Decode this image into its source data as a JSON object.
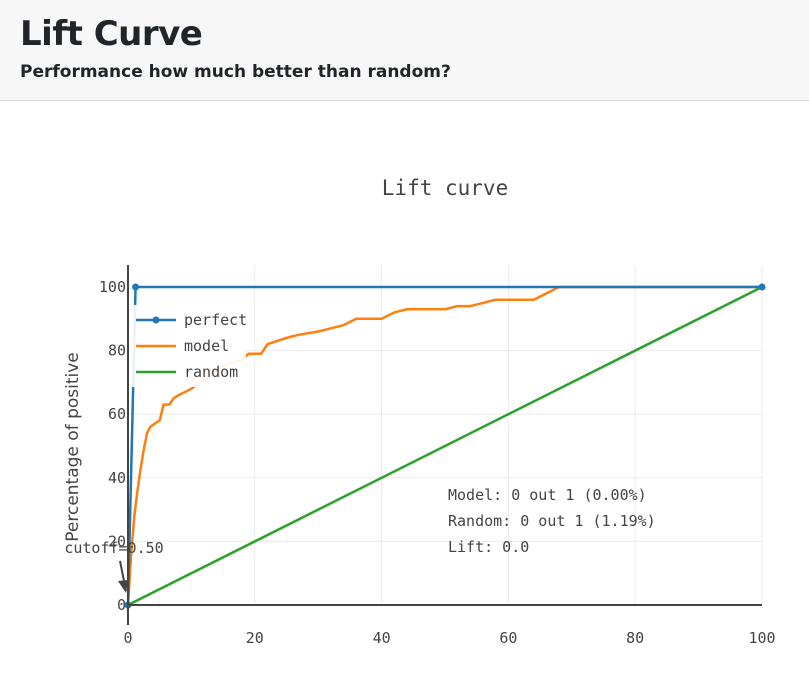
{
  "header": {
    "title": "Lift Curve",
    "subtitle": "Performance how much better than random?"
  },
  "chart_data": {
    "type": "line",
    "title": "Lift curve",
    "xlabel": "",
    "ylabel": "Percentage of positive",
    "xlim": [
      0,
      100
    ],
    "ylim": [
      0,
      100
    ],
    "x_ticks": [
      0,
      20,
      40,
      60,
      80,
      100
    ],
    "y_ticks": [
      0,
      20,
      40,
      60,
      80,
      100
    ],
    "x_tick_labels": [
      "0",
      "20",
      "40",
      "60",
      "80",
      "100"
    ],
    "y_tick_labels": [
      "0",
      "20",
      "40",
      "60",
      "80",
      "100"
    ],
    "grid": true,
    "legend_position": "top-left",
    "series": [
      {
        "name": "perfect",
        "color": "#1f77b4",
        "markers": true,
        "points": [
          [
            0,
            0
          ],
          [
            1.19,
            100
          ],
          [
            100,
            100
          ]
        ]
      },
      {
        "name": "model",
        "color": "#ff7f0e",
        "markers": false,
        "points": [
          [
            0,
            0
          ],
          [
            0.5,
            16
          ],
          [
            1,
            28
          ],
          [
            1.5,
            36
          ],
          [
            2,
            43
          ],
          [
            2.5,
            49
          ],
          [
            3,
            54
          ],
          [
            3.5,
            56
          ],
          [
            4.2,
            57
          ],
          [
            5,
            58
          ],
          [
            5.6,
            63
          ],
          [
            6.5,
            63
          ],
          [
            7.2,
            65
          ],
          [
            8,
            66
          ],
          [
            9,
            67
          ],
          [
            10,
            68
          ],
          [
            12,
            71
          ],
          [
            14,
            74
          ],
          [
            16,
            76
          ],
          [
            18,
            77
          ],
          [
            19,
            79
          ],
          [
            21,
            79
          ],
          [
            22,
            82
          ],
          [
            23.5,
            83
          ],
          [
            25,
            84
          ],
          [
            27,
            85
          ],
          [
            30,
            86
          ],
          [
            32,
            87
          ],
          [
            34,
            88
          ],
          [
            36,
            90
          ],
          [
            38,
            90
          ],
          [
            40,
            90
          ],
          [
            42,
            92
          ],
          [
            44,
            93
          ],
          [
            46,
            93
          ],
          [
            48,
            93
          ],
          [
            50,
            93
          ],
          [
            52,
            94
          ],
          [
            54,
            94
          ],
          [
            56,
            95
          ],
          [
            58,
            96
          ],
          [
            62,
            96
          ],
          [
            64,
            96
          ],
          [
            66,
            98
          ],
          [
            68,
            100
          ],
          [
            100,
            100
          ]
        ]
      },
      {
        "name": "random",
        "color": "#2ca02c",
        "markers": false,
        "points": [
          [
            0,
            0
          ],
          [
            100,
            100
          ]
        ]
      }
    ],
    "cutoff_marker": {
      "x": 0,
      "y": 0,
      "label": "cutoff=0.50"
    },
    "info_lines": [
      "Model: 0 out 1 (0.00%)",
      "Random: 0 out 1 (1.19%)",
      "Lift: 0.0"
    ]
  }
}
